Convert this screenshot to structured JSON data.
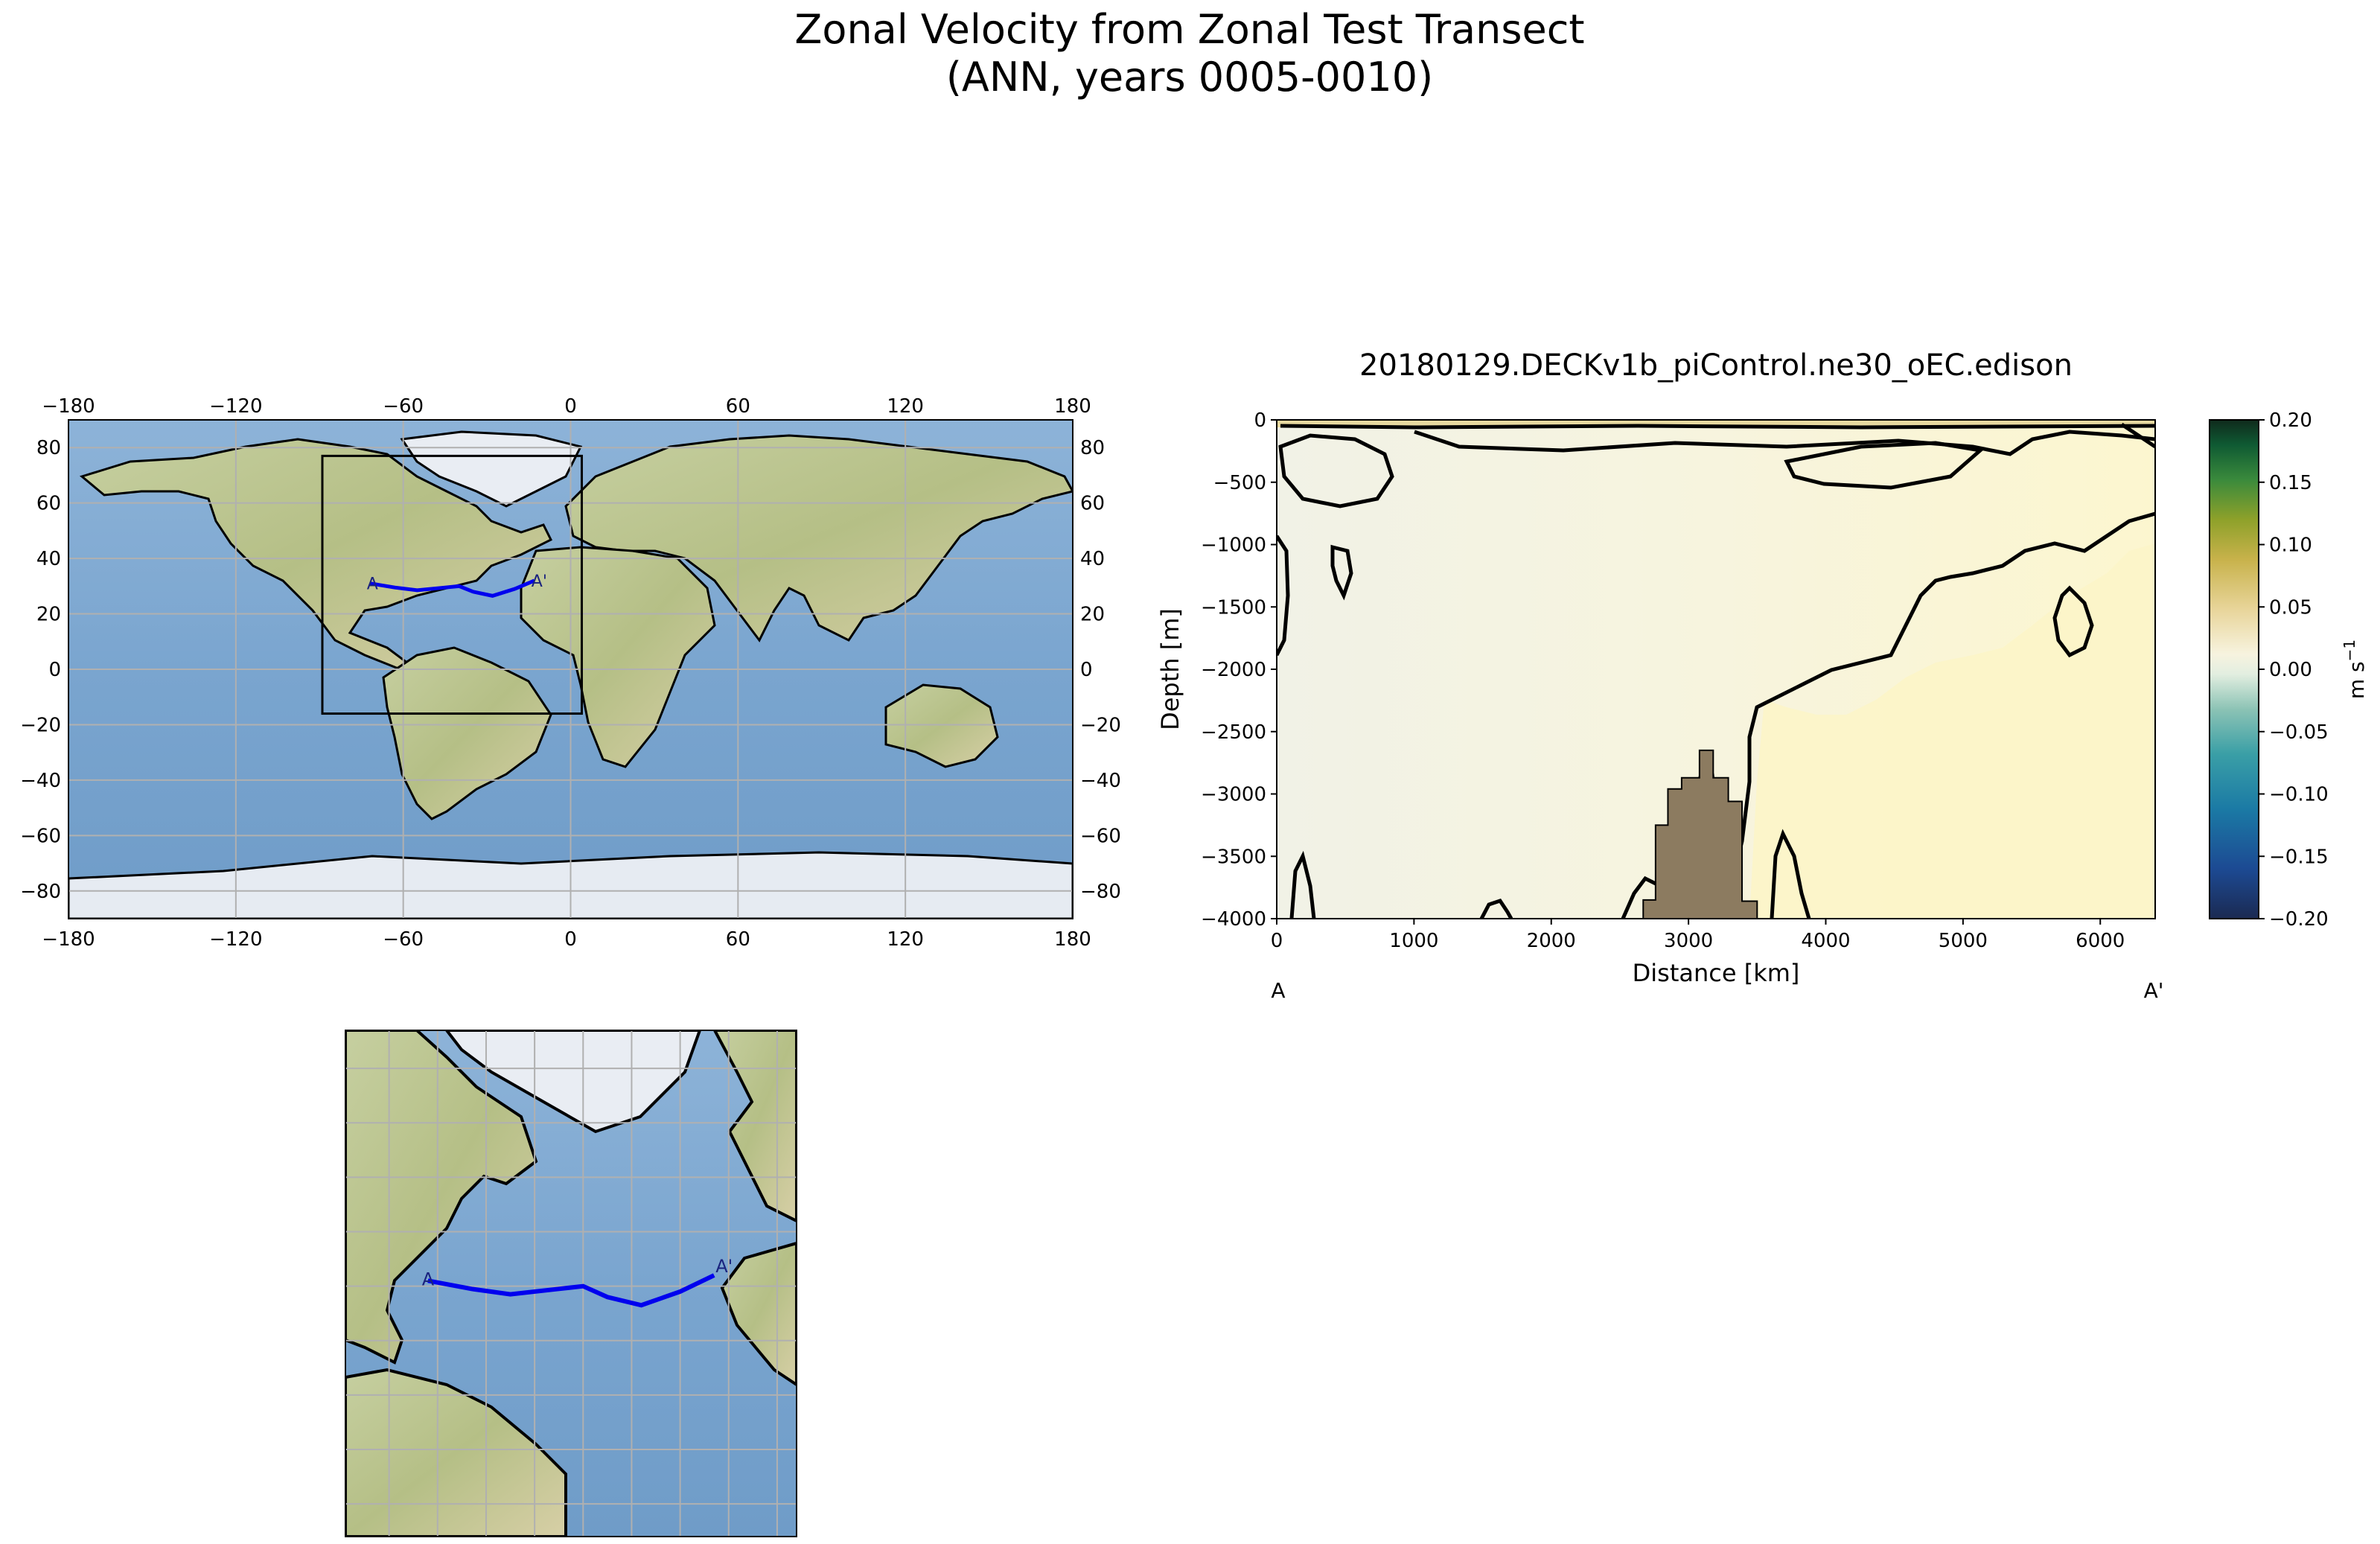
{
  "figure": {
    "title_line1": "Zonal Velocity from Zonal Test Transect",
    "title_line2": "(ANN, years 0005-0010)"
  },
  "colors": {
    "ocean": "#7aa5cf",
    "land": "#b9c48e",
    "ice": "#e6ebf2",
    "transect": "#0000ee",
    "bathymetry": "#8c7b60",
    "contour": "#000000"
  },
  "chart_data": [
    {
      "type": "map",
      "panel": "global-map",
      "projection": "plate-carree",
      "xlim": [
        -180,
        180
      ],
      "ylim": [
        -90,
        90
      ],
      "x_ticks": [
        "−180",
        "−120",
        "−60",
        "0",
        "60",
        "120",
        "180"
      ],
      "y_ticks": [
        "80",
        "60",
        "40",
        "20",
        "0",
        "−20",
        "−40",
        "−60",
        "−80"
      ],
      "x_tick_values": [
        -180,
        -120,
        -60,
        0,
        60,
        120,
        180
      ],
      "y_tick_values": [
        80,
        60,
        40,
        20,
        0,
        -20,
        -40,
        -60,
        -80
      ],
      "grid": true,
      "inset_box": {
        "lon": [
          -89,
          4
        ],
        "lat": [
          -16,
          77
        ]
      },
      "transect": {
        "lon": [
          -72,
          -63,
          -55,
          -45,
          -40,
          -35,
          -28,
          -20,
          -13
        ],
        "lat": [
          31,
          29.5,
          28.5,
          29.5,
          30,
          28,
          26.5,
          29,
          32
        ]
      },
      "labels": {
        "start": "A",
        "end": "A'"
      }
    },
    {
      "type": "contour",
      "panel": "transect-section",
      "title": "20180129.DECKv1b_piControl.ne30_oEC.edison",
      "xlabel": "Distance [km]",
      "ylabel": "Depth [m]",
      "xlim": [
        0,
        6400
      ],
      "ylim": [
        -4000,
        0
      ],
      "x_ticks": [
        "0",
        "1000",
        "2000",
        "3000",
        "4000",
        "5000",
        "6000"
      ],
      "x_tick_values": [
        0,
        1000,
        2000,
        3000,
        4000,
        5000,
        6000
      ],
      "y_ticks": [
        "0",
        "−500",
        "−1000",
        "−1500",
        "−2000",
        "−2500",
        "−3000",
        "−3500",
        "−4000"
      ],
      "y_tick_values": [
        0,
        -500,
        -1000,
        -1500,
        -2000,
        -2500,
        -3000,
        -3500,
        -4000
      ],
      "section_labels": {
        "start": "A",
        "end": "A'"
      },
      "colorbar": {
        "label": "m s",
        "label_exponent": "−1",
        "range": [
          -0.2,
          0.2
        ],
        "ticks": [
          "0.20",
          "0.15",
          "0.10",
          "0.05",
          "0.00",
          "−0.05",
          "−0.10",
          "−0.15",
          "−0.20"
        ],
        "tick_values": [
          0.2,
          0.15,
          0.1,
          0.05,
          0.0,
          -0.05,
          -0.1,
          -0.15,
          -0.2
        ],
        "colors": [
          "#1b2a52",
          "#1c4a93",
          "#1b7aa5",
          "#3a9fa6",
          "#8cc3b5",
          "#e2eee0",
          "#f7f3df",
          "#e8d59a",
          "#c8b24b",
          "#8ea12a",
          "#3a8a3c",
          "#0f5a33",
          "#0f2a1c"
        ]
      },
      "bathymetry": [
        [
          2670,
          -4000
        ],
        [
          2670,
          -3850
        ],
        [
          2760,
          -3850
        ],
        [
          2760,
          -3250
        ],
        [
          2850,
          -3250
        ],
        [
          2850,
          -2960
        ],
        [
          2950,
          -2960
        ],
        [
          2950,
          -2870
        ],
        [
          3080,
          -2870
        ],
        [
          3080,
          -2650
        ],
        [
          3180,
          -2650
        ],
        [
          3180,
          -2870
        ],
        [
          3290,
          -2870
        ],
        [
          3290,
          -3060
        ],
        [
          3390,
          -3060
        ],
        [
          3390,
          -3860
        ],
        [
          3500,
          -3860
        ],
        [
          3500,
          -4000
        ]
      ],
      "contour_level_ms": 0.0
    },
    {
      "type": "map",
      "panel": "regional-inset-map",
      "projection": "plate-carree",
      "xlim": [
        -89,
        4
      ],
      "ylim": [
        -16,
        77
      ],
      "grid": true,
      "transect": {
        "lon": [
          -72,
          -63,
          -55,
          -45,
          -40,
          -35,
          -28,
          -20,
          -13
        ],
        "lat": [
          31,
          29.5,
          28.5,
          29.5,
          30,
          28,
          26.5,
          29,
          32
        ]
      },
      "labels": {
        "start": "A",
        "end": "A'"
      }
    }
  ]
}
